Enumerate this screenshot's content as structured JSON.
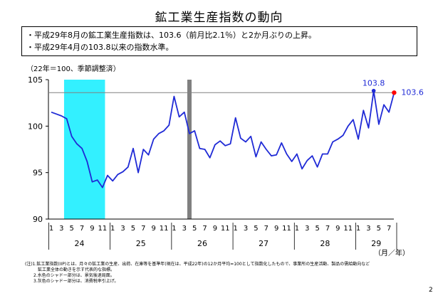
{
  "title": "鉱工業生産指数の動向",
  "summary": [
    "・平成29年8月の鉱工業生産指数は、103.6（前月比2.1％）と2か月ぶりの上昇。",
    "・平成29年4月の103.8以来の指数水準。"
  ],
  "notes": [
    "(注)1.鉱工業指数(IIP)とは、月々の鉱工業の生産、出荷、在庫等を基準年(現在は、平成22年)の12か月平均=100として指数化したもので、事業所の生産活動、製品の需給動向など",
    "　　　鉱工業全体の動きを示す代表的な指標。",
    "　　2.水色のシャドー部分は、景気後退局面。",
    "　　3.灰色のシャドー部分は、消費税率引上げ。"
  ],
  "page_number": "2",
  "colors": {
    "line": "#1f2ad6",
    "recession_shade": "#33f0ff",
    "tax_shade": "#808080",
    "highlight_point": "#ff0000",
    "peak_point": "#1f2ad6",
    "reference_line": "#808080"
  },
  "chart_data": {
    "type": "line",
    "ylabel": "（22年＝100、季節調整済）",
    "xlabel": "（月／年）",
    "ylim": [
      90,
      105
    ],
    "yticks": [
      90,
      95,
      100,
      105
    ],
    "grid": false,
    "month_tick_labels": [
      "1",
      "3",
      "5",
      "7",
      "9",
      "11",
      "1",
      "3",
      "5",
      "7",
      "9",
      "11",
      "1",
      "3",
      "5",
      "7",
      "9",
      "11",
      "1",
      "3",
      "5",
      "7",
      "9",
      "11",
      "1",
      "3",
      "5",
      "7",
      "9",
      "11",
      "1",
      "3",
      "5",
      "7"
    ],
    "year_labels": [
      "24",
      "25",
      "26",
      "27",
      "28",
      "29"
    ],
    "x": [
      "24-1",
      "24-2",
      "24-3",
      "24-4",
      "24-5",
      "24-6",
      "24-7",
      "24-8",
      "24-9",
      "24-10",
      "24-11",
      "24-12",
      "25-1",
      "25-2",
      "25-3",
      "25-4",
      "25-5",
      "25-6",
      "25-7",
      "25-8",
      "25-9",
      "25-10",
      "25-11",
      "25-12",
      "26-1",
      "26-2",
      "26-3",
      "26-4",
      "26-5",
      "26-6",
      "26-7",
      "26-8",
      "26-9",
      "26-10",
      "26-11",
      "26-12",
      "27-1",
      "27-2",
      "27-3",
      "27-4",
      "27-5",
      "27-6",
      "27-7",
      "27-8",
      "27-9",
      "27-10",
      "27-11",
      "27-12",
      "28-1",
      "28-2",
      "28-3",
      "28-4",
      "28-5",
      "28-6",
      "28-7",
      "28-8",
      "28-9",
      "28-10",
      "28-11",
      "28-12",
      "29-1",
      "29-2",
      "29-3",
      "29-4",
      "29-5",
      "29-6",
      "29-7",
      "29-8"
    ],
    "series": [
      {
        "values": [
          101.5,
          101.3,
          101.1,
          100.8,
          98.9,
          98.1,
          97.6,
          96.2,
          94.0,
          94.2,
          93.4,
          94.7,
          94.1,
          94.8,
          95.1,
          95.6,
          97.6,
          95.0,
          97.5,
          96.9,
          98.6,
          99.2,
          99.5,
          100.1,
          103.2,
          101.0,
          101.5,
          99.2,
          99.5,
          97.6,
          97.5,
          96.6,
          98.0,
          98.4,
          97.9,
          98.1,
          100.9,
          98.7,
          98.3,
          98.9,
          96.7,
          98.3,
          97.5,
          96.8,
          96.9,
          98.2,
          97.0,
          96.2,
          97.0,
          95.4,
          96.3,
          96.8,
          95.6,
          97.0,
          97.0,
          98.3,
          98.6,
          99.0,
          100.0,
          100.7,
          98.6,
          101.7,
          99.8,
          103.8,
          100.2,
          102.3,
          101.5,
          103.6
        ]
      }
    ],
    "annotations": [
      {
        "label": "103.8",
        "x": "29-4",
        "y": 103.8
      },
      {
        "label": "103.6",
        "x": "29-8",
        "y": 103.6
      }
    ],
    "reference_line": {
      "y": 103.6
    },
    "shaded_ranges": [
      {
        "kind": "recession",
        "from": "24-4",
        "to": "24-11"
      },
      {
        "kind": "tax_increase",
        "at": "26-4"
      }
    ]
  }
}
